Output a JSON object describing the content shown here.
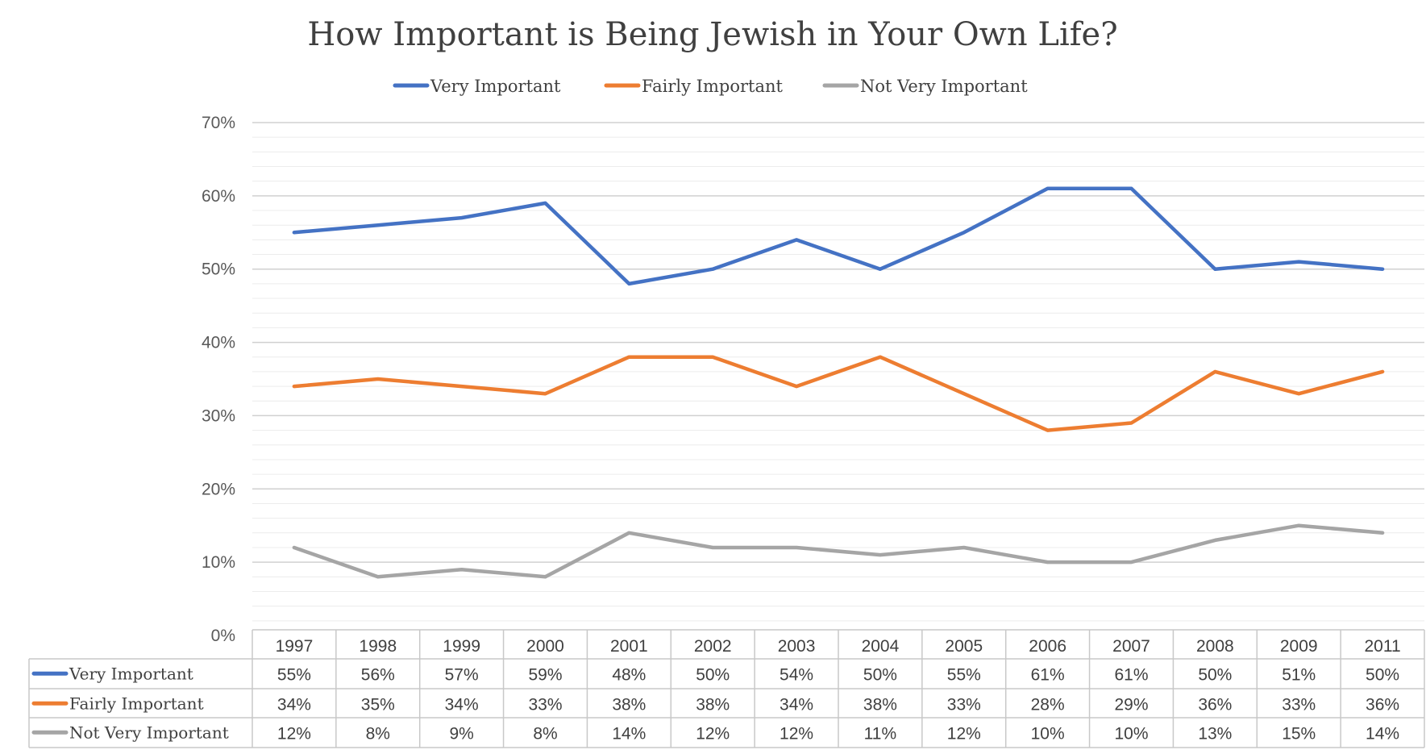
{
  "chart_data": {
    "type": "line",
    "title": "How Important is Being Jewish in Your Own Life?",
    "categories": [
      "1997",
      "1998",
      "1999",
      "2000",
      "2001",
      "2002",
      "2003",
      "2004",
      "2005",
      "2006",
      "2007",
      "2008",
      "2009",
      "2011"
    ],
    "series": [
      {
        "name": "Very Important",
        "color": "#4472C4",
        "values": [
          55,
          56,
          57,
          59,
          48,
          50,
          54,
          50,
          55,
          61,
          61,
          50,
          51,
          50
        ],
        "labels": [
          "55%",
          "56%",
          "57%",
          "59%",
          "48%",
          "50%",
          "54%",
          "50%",
          "55%",
          "61%",
          "61%",
          "50%",
          "51%",
          "50%"
        ]
      },
      {
        "name": "Fairly Important",
        "color": "#ED7D31",
        "values": [
          34,
          35,
          34,
          33,
          38,
          38,
          34,
          38,
          33,
          28,
          29,
          36,
          33,
          36
        ],
        "labels": [
          "34%",
          "35%",
          "34%",
          "33%",
          "38%",
          "38%",
          "34%",
          "38%",
          "33%",
          "28%",
          "29%",
          "36%",
          "33%",
          "36%"
        ]
      },
      {
        "name": "Not Very Important",
        "color": "#A5A5A5",
        "values": [
          12,
          8,
          9,
          8,
          14,
          12,
          12,
          11,
          12,
          10,
          10,
          13,
          15,
          14
        ],
        "labels": [
          "12%",
          "8%",
          "9%",
          "8%",
          "14%",
          "12%",
          "12%",
          "11%",
          "12%",
          "10%",
          "10%",
          "13%",
          "15%",
          "14%"
        ]
      }
    ],
    "y_ticks": [
      "0%",
      "10%",
      "20%",
      "30%",
      "40%",
      "50%",
      "60%",
      "70%"
    ],
    "ylim": [
      0,
      70
    ],
    "grid": true,
    "legend_position": "top",
    "data_table": true
  }
}
